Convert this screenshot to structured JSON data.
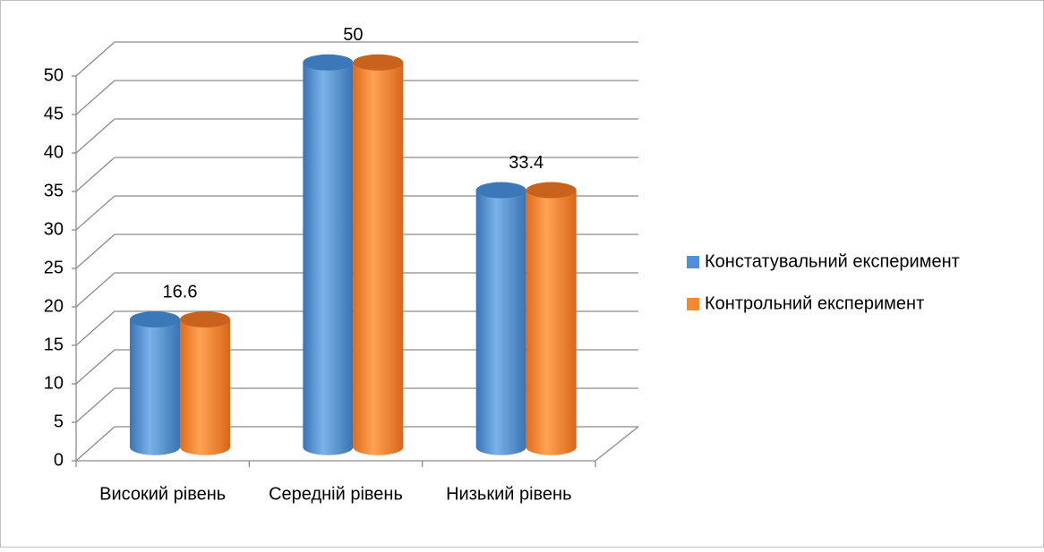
{
  "chart_data": {
    "type": "bar3d",
    "categories": [
      "Високий рівень",
      "Середній рівень",
      "Низький рівень"
    ],
    "series": [
      {
        "name": "Констатувальний експеримент",
        "color": "#4f8fd6",
        "values": [
          16.6,
          50,
          33.4
        ]
      },
      {
        "name": "Контрольний експеримент",
        "color": "#f5892f",
        "values": [
          16.6,
          50,
          33.4
        ]
      }
    ],
    "ylim": [
      0,
      50
    ],
    "yticks": [
      0,
      5,
      10,
      15,
      20,
      25,
      30,
      35,
      40,
      45,
      50
    ],
    "grid": true,
    "legend": "right"
  }
}
